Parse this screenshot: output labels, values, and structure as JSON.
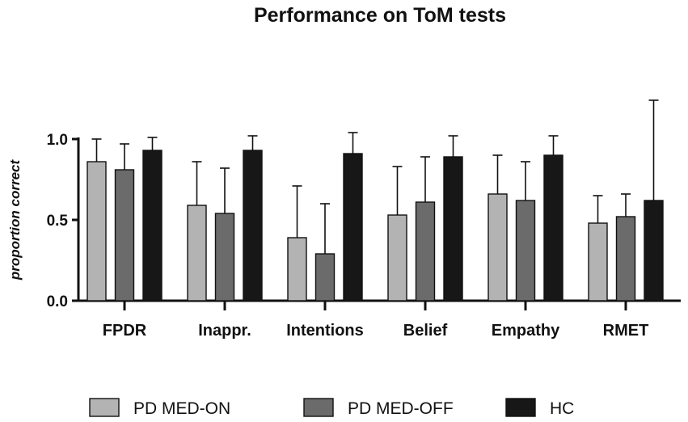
{
  "chart_data": {
    "type": "bar",
    "title": "Performance on ToM tests",
    "xlabel": "",
    "ylabel": "proportion correct",
    "ylim": [
      0,
      1.0
    ],
    "yticks": [
      {
        "value": 0.0,
        "label": "0.0"
      },
      {
        "value": 0.5,
        "label": "0.5"
      },
      {
        "value": 1.0,
        "label": "1.0"
      }
    ],
    "categories": [
      "FPDR",
      "Inappr.",
      "Intentions",
      "Belief",
      "Empathy",
      "RMET"
    ],
    "series": [
      {
        "name": "PD MED-ON",
        "color": "#b3b3b3",
        "values": [
          0.86,
          0.59,
          0.39,
          0.53,
          0.66,
          0.48
        ],
        "errors": [
          0.14,
          0.27,
          0.32,
          0.3,
          0.24,
          0.17
        ]
      },
      {
        "name": "PD MED-OFF",
        "color": "#6b6b6b",
        "values": [
          0.81,
          0.54,
          0.29,
          0.61,
          0.62,
          0.52
        ],
        "errors": [
          0.16,
          0.28,
          0.31,
          0.28,
          0.24,
          0.14
        ]
      },
      {
        "name": "HC",
        "color": "#171717",
        "values": [
          0.93,
          0.93,
          0.91,
          0.89,
          0.9,
          0.62
        ],
        "errors": [
          0.08,
          0.09,
          0.13,
          0.13,
          0.12,
          0.62
        ]
      }
    ],
    "legend_position": "bottom"
  }
}
